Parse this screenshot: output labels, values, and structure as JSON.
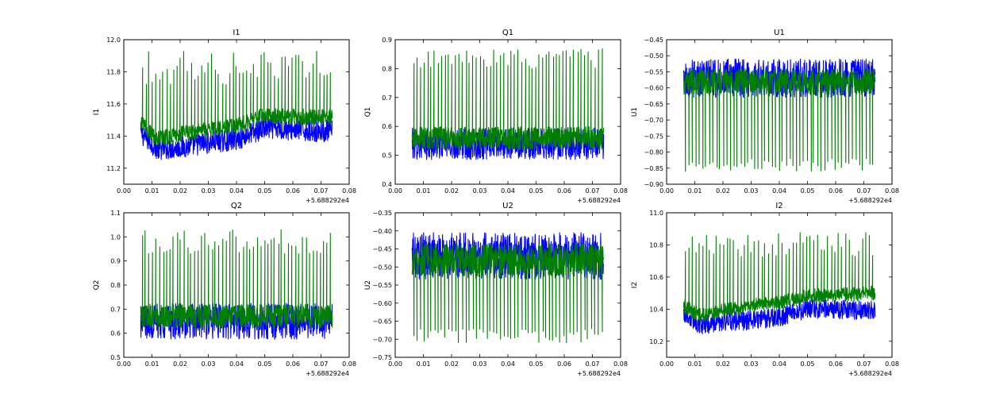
{
  "figure": {
    "x_offset_label": "+5.688292e4",
    "colors": {
      "series_a": "#0000ff",
      "series_b": "#007f00"
    }
  },
  "chart_data": [
    {
      "type": "line",
      "title": "I1",
      "ylabel": "I1",
      "xlabel": "",
      "xlim": [
        0.0,
        0.08
      ],
      "xticks": [
        "0.00",
        "0.01",
        "0.02",
        "0.03",
        "0.04",
        "0.05",
        "0.06",
        "0.07",
        "0.08"
      ],
      "ylim": [
        11.1,
        12.0
      ],
      "yticks": [
        "11.2",
        "11.4",
        "11.6",
        "11.8",
        "12.0"
      ],
      "x_start": 0.006,
      "x_end": 0.074,
      "series": [
        {
          "color": "#0000ff",
          "base": [
            [
              0.006,
              11.42
            ],
            [
              0.012,
              11.32
            ],
            [
              0.02,
              11.33
            ],
            [
              0.03,
              11.36
            ],
            [
              0.04,
              11.38
            ],
            [
              0.05,
              11.45
            ],
            [
              0.06,
              11.44
            ],
            [
              0.074,
              11.43
            ]
          ],
          "noise": 0.07,
          "spike_to": null,
          "spike_count": 0
        },
        {
          "color": "#007f00",
          "base": [
            [
              0.006,
              11.48
            ],
            [
              0.012,
              11.38
            ],
            [
              0.02,
              11.41
            ],
            [
              0.03,
              11.44
            ],
            [
              0.04,
              11.46
            ],
            [
              0.05,
              11.53
            ],
            [
              0.06,
              11.52
            ],
            [
              0.074,
              11.52
            ]
          ],
          "noise": 0.05,
          "spike_to": [
            11.72,
            11.93
          ],
          "spike_count": 55
        }
      ]
    },
    {
      "type": "line",
      "title": "Q1",
      "ylabel": "Q1",
      "xlabel": "",
      "xlim": [
        0.0,
        0.08
      ],
      "xticks": [
        "0.00",
        "0.01",
        "0.02",
        "0.03",
        "0.04",
        "0.05",
        "0.06",
        "0.07",
        "0.08"
      ],
      "ylim": [
        0.4,
        0.9
      ],
      "yticks": [
        "0.4",
        "0.5",
        "0.6",
        "0.7",
        "0.8",
        "0.9"
      ],
      "x_start": 0.006,
      "x_end": 0.074,
      "series": [
        {
          "color": "#0000ff",
          "base": [
            [
              0.006,
              0.54
            ],
            [
              0.074,
              0.54
            ]
          ],
          "noise": 0.055,
          "spike_to": null,
          "spike_count": 0
        },
        {
          "color": "#007f00",
          "base": [
            [
              0.006,
              0.56
            ],
            [
              0.074,
              0.56
            ]
          ],
          "noise": 0.04,
          "spike_to": [
            0.8,
            0.87
          ],
          "spike_count": 55
        }
      ]
    },
    {
      "type": "line",
      "title": "U1",
      "ylabel": "U1",
      "xlabel": "",
      "xlim": [
        0.0,
        0.08
      ],
      "xticks": [
        "0.00",
        "0.01",
        "0.02",
        "0.03",
        "0.04",
        "0.05",
        "0.06",
        "0.07",
        "0.08"
      ],
      "ylim": [
        -0.9,
        -0.45
      ],
      "yticks": [
        "−0.90",
        "−0.85",
        "−0.80",
        "−0.75",
        "−0.70",
        "−0.65",
        "−0.60",
        "−0.55",
        "−0.50",
        "−0.45"
      ],
      "x_start": 0.006,
      "x_end": 0.074,
      "series": [
        {
          "color": "#0000ff",
          "base": [
            [
              0.006,
              -0.57
            ],
            [
              0.074,
              -0.57
            ]
          ],
          "noise": 0.06,
          "spike_to": null,
          "spike_count": 0
        },
        {
          "color": "#007f00",
          "base": [
            [
              0.006,
              -0.58
            ],
            [
              0.074,
              -0.58
            ]
          ],
          "noise": 0.04,
          "spike_to": [
            -0.86,
            -0.82
          ],
          "spike_count": 55
        }
      ]
    },
    {
      "type": "line",
      "title": "Q2",
      "ylabel": "Q2",
      "xlabel": "",
      "xlim": [
        0.0,
        0.08
      ],
      "xticks": [
        "0.00",
        "0.01",
        "0.02",
        "0.03",
        "0.04",
        "0.05",
        "0.06",
        "0.07",
        "0.08"
      ],
      "ylim": [
        0.5,
        1.1
      ],
      "yticks": [
        "0.5",
        "0.6",
        "0.7",
        "0.8",
        "0.9",
        "1.0",
        "1.1"
      ],
      "x_start": 0.006,
      "x_end": 0.074,
      "series": [
        {
          "color": "#0000ff",
          "base": [
            [
              0.006,
              0.65
            ],
            [
              0.074,
              0.65
            ]
          ],
          "noise": 0.075,
          "spike_to": null,
          "spike_count": 0
        },
        {
          "color": "#007f00",
          "base": [
            [
              0.006,
              0.67
            ],
            [
              0.074,
              0.67
            ]
          ],
          "noise": 0.05,
          "spike_to": [
            0.93,
            1.03
          ],
          "spike_count": 55
        }
      ]
    },
    {
      "type": "line",
      "title": "U2",
      "ylabel": "U2",
      "xlabel": "",
      "xlim": [
        0.0,
        0.08
      ],
      "xticks": [
        "0.00",
        "0.01",
        "0.02",
        "0.03",
        "0.04",
        "0.05",
        "0.06",
        "0.07",
        "0.08"
      ],
      "ylim": [
        -0.75,
        -0.35
      ],
      "yticks": [
        "−0.75",
        "−0.70",
        "−0.65",
        "−0.60",
        "−0.55",
        "−0.50",
        "−0.45",
        "−0.40",
        "−0.35"
      ],
      "x_start": 0.006,
      "x_end": 0.074,
      "series": [
        {
          "color": "#0000ff",
          "base": [
            [
              0.006,
              -0.47
            ],
            [
              0.074,
              -0.47
            ]
          ],
          "noise": 0.065,
          "spike_to": null,
          "spike_count": 0
        },
        {
          "color": "#007f00",
          "base": [
            [
              0.006,
              -0.48
            ],
            [
              0.074,
              -0.48
            ]
          ],
          "noise": 0.045,
          "spike_to": [
            -0.71,
            -0.67
          ],
          "spike_count": 55
        }
      ]
    },
    {
      "type": "line",
      "title": "I2",
      "ylabel": "I2",
      "xlabel": "",
      "xlim": [
        0.0,
        0.08
      ],
      "xticks": [
        "0.00",
        "0.01",
        "0.02",
        "0.03",
        "0.04",
        "0.05",
        "0.06",
        "0.07",
        "0.08"
      ],
      "ylim": [
        10.1,
        11.0
      ],
      "yticks": [
        "10.2",
        "10.4",
        "10.6",
        "10.8",
        "11.0"
      ],
      "x_start": 0.006,
      "x_end": 0.074,
      "series": [
        {
          "color": "#0000ff",
          "base": [
            [
              0.006,
              10.37
            ],
            [
              0.012,
              10.3
            ],
            [
              0.02,
              10.32
            ],
            [
              0.03,
              10.33
            ],
            [
              0.04,
              10.35
            ],
            [
              0.05,
              10.4
            ],
            [
              0.06,
              10.4
            ],
            [
              0.074,
              10.39
            ]
          ],
          "noise": 0.06,
          "spike_to": null,
          "spike_count": 0
        },
        {
          "color": "#007f00",
          "base": [
            [
              0.006,
              10.42
            ],
            [
              0.012,
              10.36
            ],
            [
              0.02,
              10.39
            ],
            [
              0.03,
              10.42
            ],
            [
              0.04,
              10.44
            ],
            [
              0.05,
              10.48
            ],
            [
              0.06,
              10.49
            ],
            [
              0.074,
              10.5
            ]
          ],
          "noise": 0.045,
          "spike_to": [
            10.72,
            10.88
          ],
          "spike_count": 55
        }
      ]
    }
  ]
}
